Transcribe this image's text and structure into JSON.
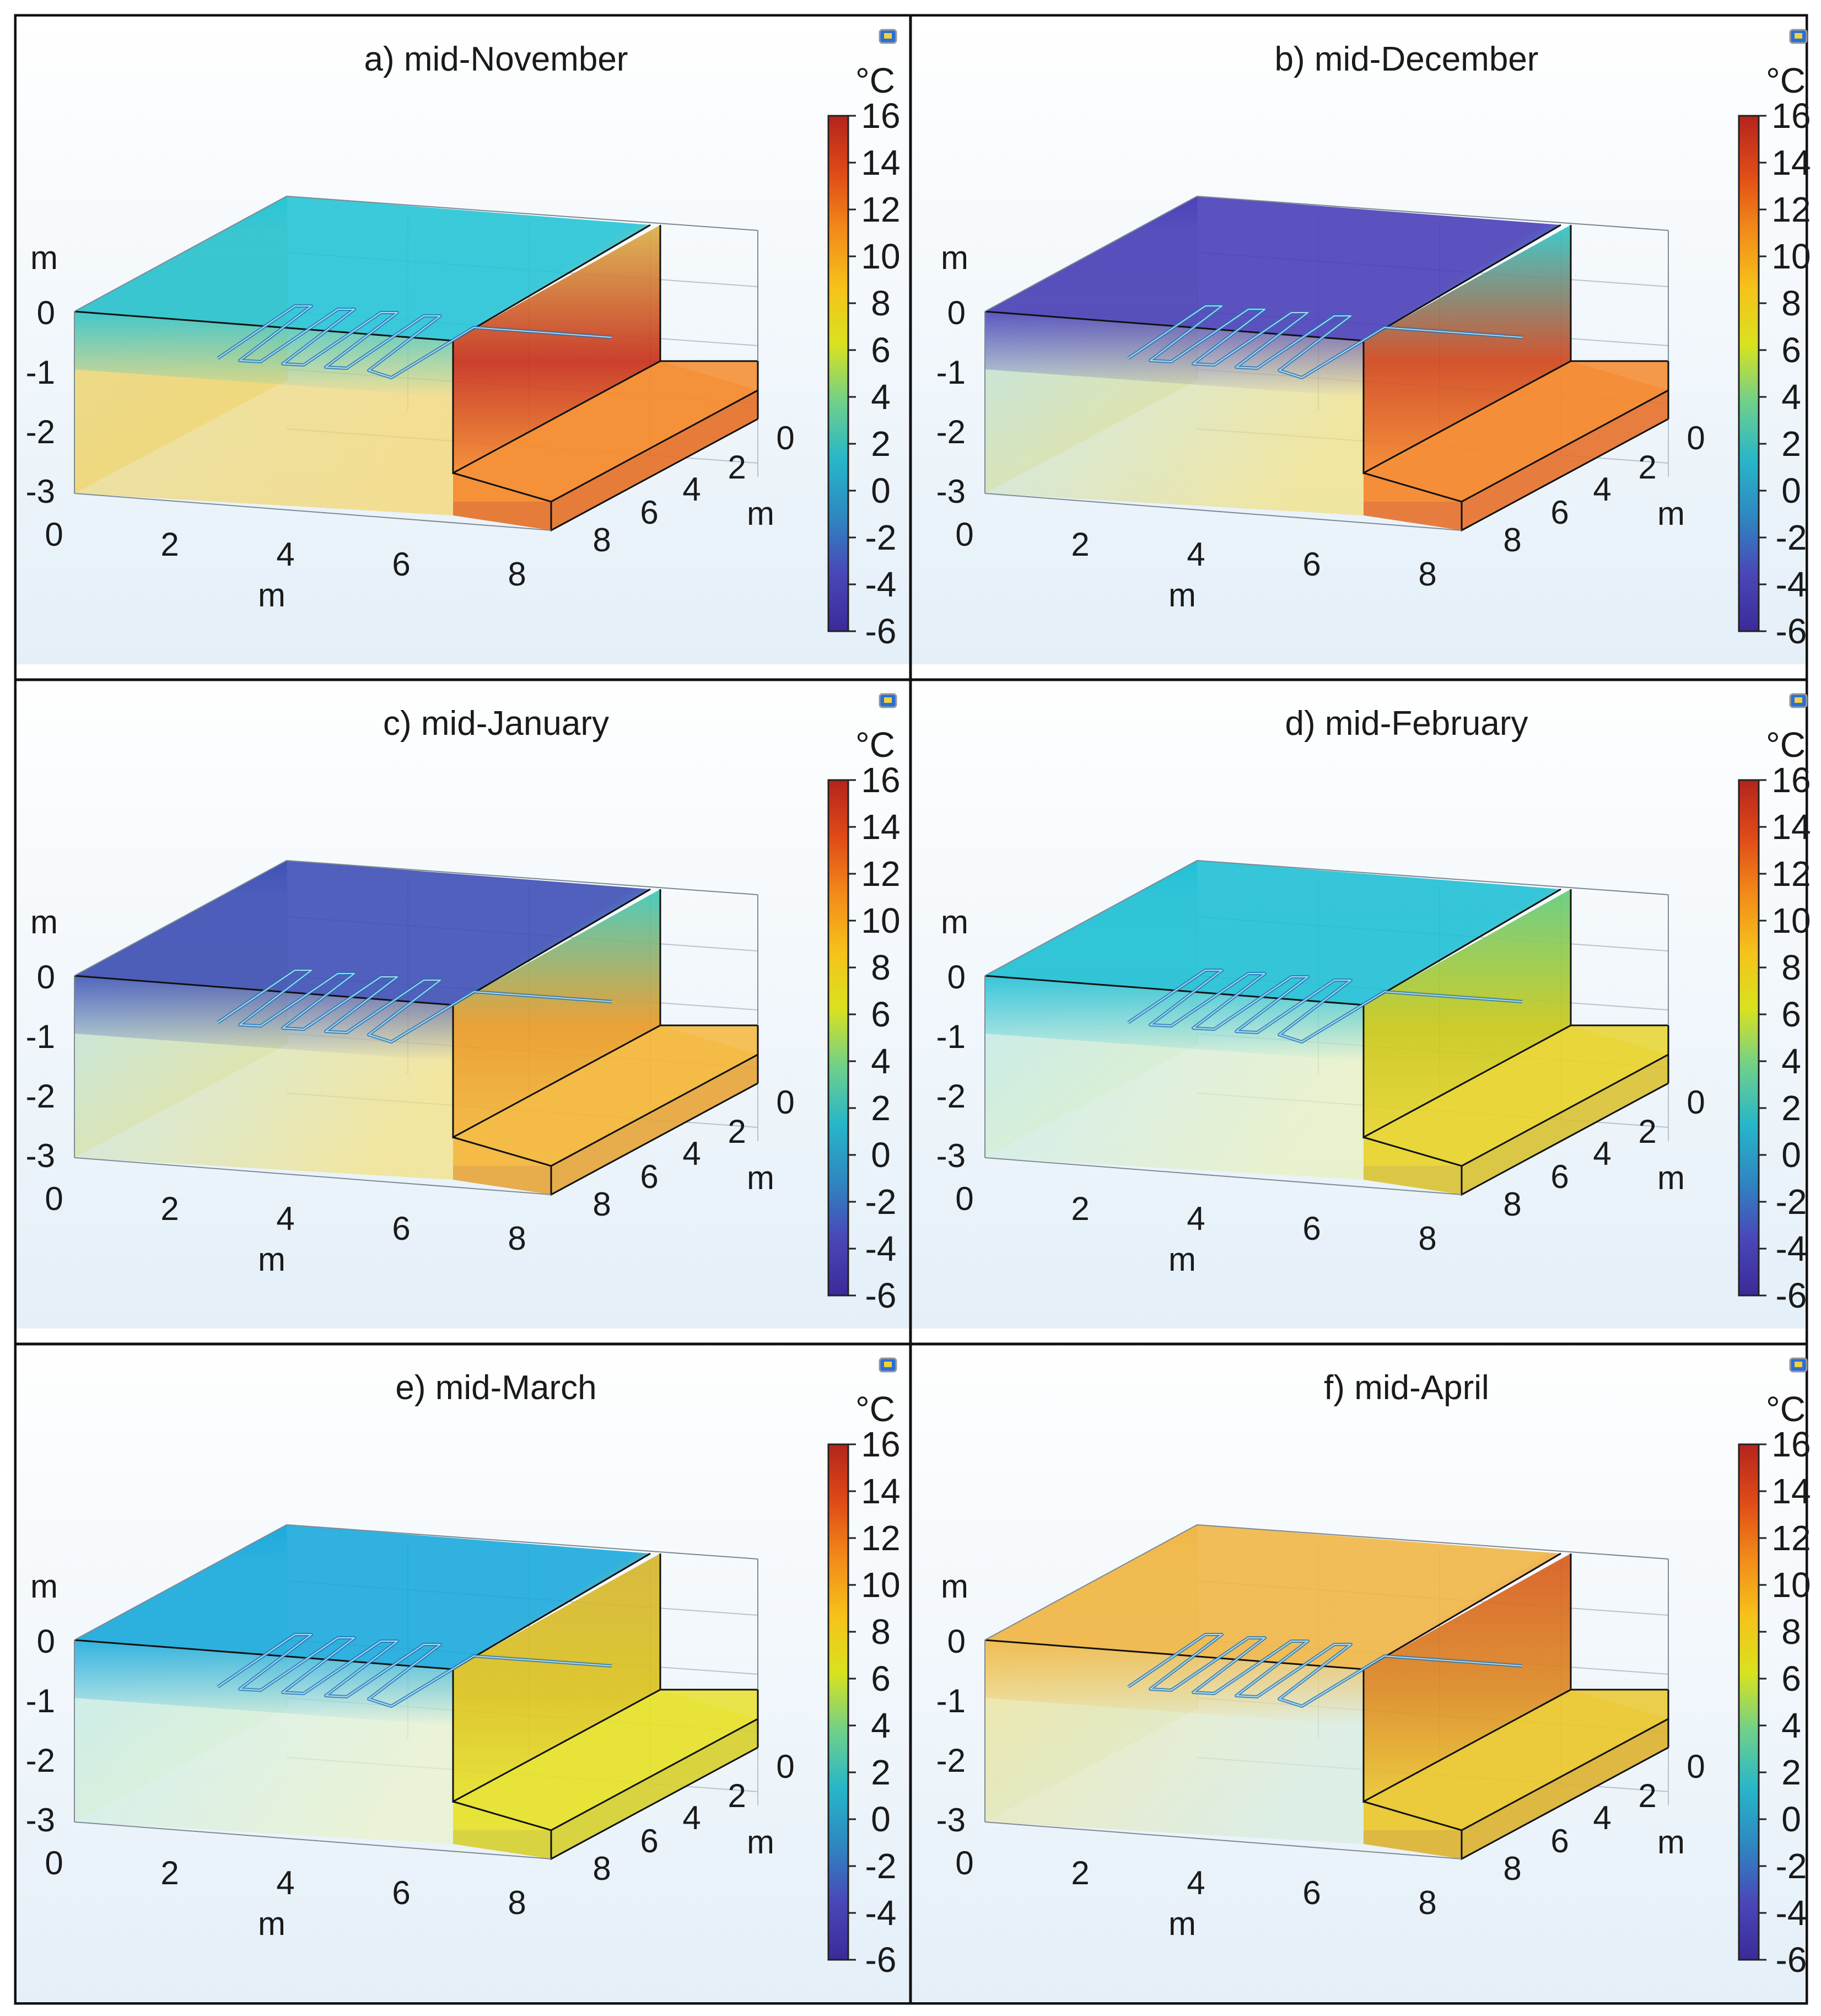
{
  "figure": {
    "colorbar": {
      "unit": "°C",
      "ticks": [
        "16",
        "14",
        "12",
        "10",
        "8",
        "6",
        "4",
        "2",
        "0",
        "-2",
        "-4",
        "-6"
      ],
      "min": -6,
      "max": 16,
      "colors": [
        "#3b2a98",
        "#4a47b8",
        "#2e87c0",
        "#27b6c9",
        "#6fd08a",
        "#d9e21e",
        "#f6c21a",
        "#f28b19",
        "#e04a17",
        "#b3241c"
      ]
    },
    "axes": {
      "x_ticks": [
        "0",
        "2",
        "4",
        "6",
        "8"
      ],
      "x_label": "m",
      "y_ticks": [
        "0",
        "2",
        "4",
        "6",
        "8"
      ],
      "y_label": "m",
      "z_ticks": [
        "0",
        "-1",
        "-2",
        "-3"
      ],
      "z_label": "m"
    },
    "panels": [
      {
        "title": "a) mid-November",
        "top": "#26c4d6",
        "top_right": "#dcb24a",
        "side_upper": "#e9d98a",
        "side_lower": "#f4d66a",
        "box_side": "#c7301b",
        "step_top": "#f58a2c",
        "step_front": "#e66f25"
      },
      {
        "title": "b) mid-December",
        "top": "#4a3fb8",
        "top_right": "#2ec7c8",
        "side_upper": "#bfe5ea",
        "side_lower": "#f1e080",
        "box_side": "#d1461c",
        "step_top": "#f5872a",
        "step_front": "#e5702a"
      },
      {
        "title": "c) mid-January",
        "top": "#3e4fb5",
        "top_right": "#3dc9b7",
        "side_upper": "#bfe7ec",
        "side_lower": "#f3e07e",
        "box_side": "#e99a26",
        "step_top": "#f4b63a",
        "step_front": "#e7a437"
      },
      {
        "title": "d) mid-February",
        "top": "#20bfd5",
        "top_right": "#62cc7d",
        "side_upper": "#c3ebf1",
        "side_lower": "#e8f0bd",
        "box_side": "#c9c819",
        "step_top": "#e8d42e",
        "step_front": "#d9c232"
      },
      {
        "title": "e) mid-March",
        "top": "#1aa9dc",
        "top_right": "#d5b532",
        "side_upper": "#c5ecef",
        "side_lower": "#e9f2c9",
        "box_side": "#dcc21f",
        "step_top": "#e7e12a",
        "step_front": "#d6cf2b"
      },
      {
        "title": "f) mid-April",
        "top": "#f0b646",
        "top_right": "#d85a1e",
        "side_upper": "#f1e5a0",
        "side_lower": "#d6ecde",
        "box_side": "#dc8a24",
        "step_top": "#ebc72e",
        "step_front": "#dcb12e"
      }
    ]
  }
}
